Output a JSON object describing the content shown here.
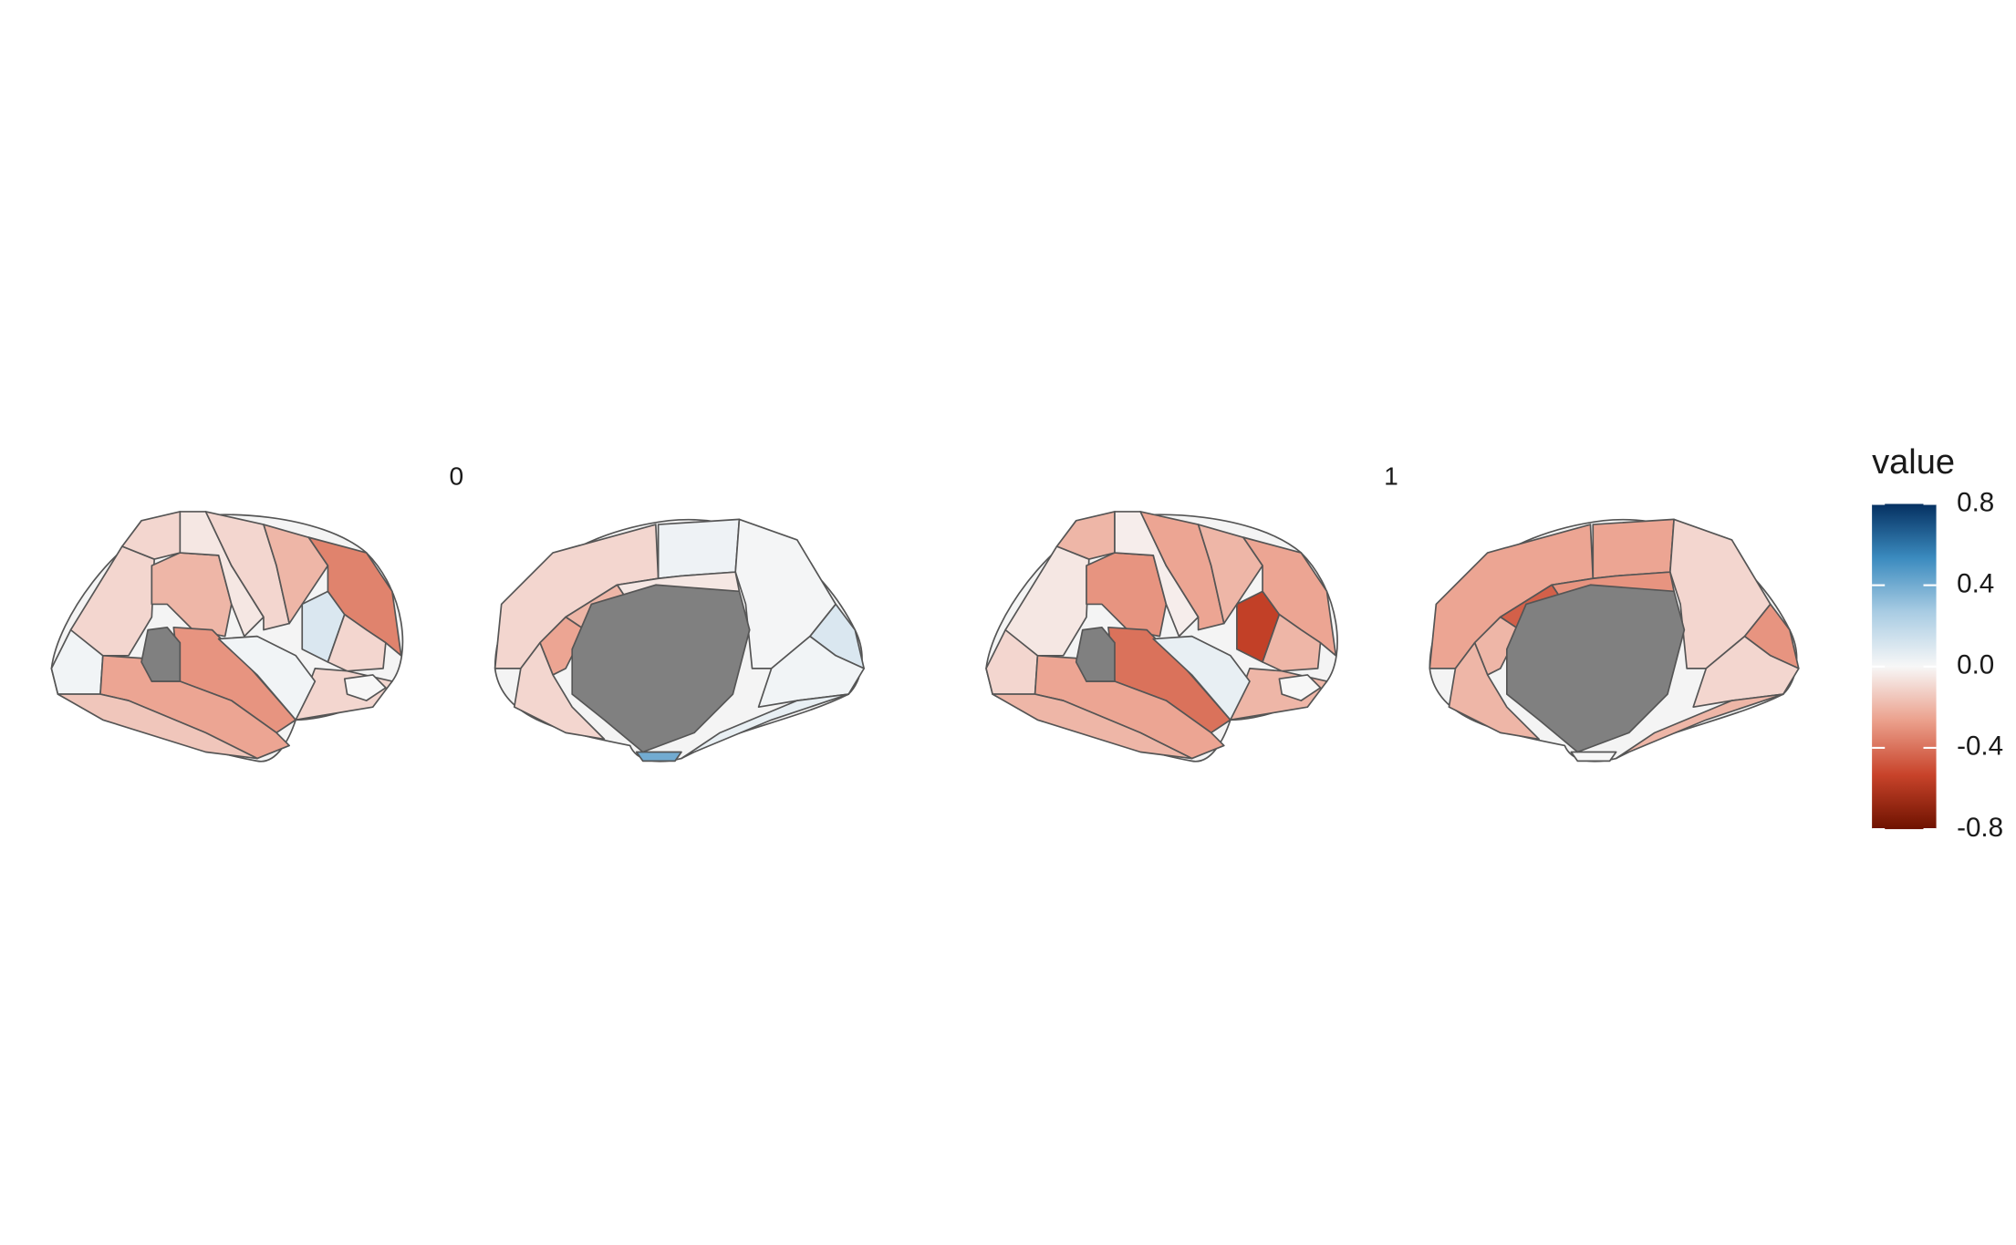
{
  "chart_data": {
    "type": "brain",
    "facets": [
      {
        "label": "0",
        "lateral": [
          0.02,
          -0.1,
          -0.2,
          -0.1,
          -0.05,
          -0.1,
          -0.2,
          0.1,
          -0.35,
          -0.1,
          -0.1,
          0.0,
          -0.3,
          -0.25,
          -0.15,
          0.02
        ],
        "medial": [
          -0.1,
          0.03,
          0.01,
          0.1,
          0.02,
          -0.05,
          -0.2,
          -0.25,
          -0.1,
          0.05,
          0.4
        ]
      },
      {
        "label": "1",
        "lateral": [
          -0.1,
          -0.05,
          -0.3,
          -0.2,
          -0.03,
          -0.25,
          -0.2,
          -0.55,
          -0.25,
          -0.2,
          -0.2,
          0.0,
          -0.4,
          -0.25,
          -0.2,
          0.05
        ],
        "medial": [
          -0.25,
          -0.25,
          -0.1,
          -0.3,
          -0.1,
          -0.3,
          -0.45,
          -0.2,
          -0.2,
          -0.2,
          0.0
        ]
      }
    ],
    "legend_title": "value",
    "lim": [
      -0.8,
      0.8
    ],
    "ticks": [
      0.8,
      0.4,
      {
        "value": 0,
        "label": "0.0"
      },
      -0.4,
      -0.8
    ],
    "colors": [
      "#6e1200",
      "#c8432a",
      "#eba08c",
      "#f7f7f7",
      "#a9cce3",
      "#3b8bbf",
      "#053061"
    ]
  }
}
